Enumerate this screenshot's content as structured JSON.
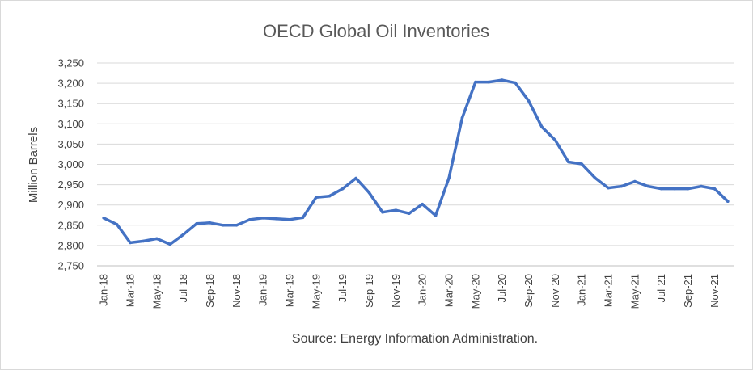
{
  "chart_data": {
    "type": "line",
    "title": "OECD Global Oil Inventories",
    "ylabel": "Million Barrels",
    "xlabel": "",
    "source": "Source: Energy Information Administration.",
    "ylim": [
      2750,
      3250
    ],
    "y_ticks": [
      2750,
      2800,
      2850,
      2900,
      2950,
      3000,
      3050,
      3100,
      3150,
      3200,
      3250
    ],
    "y_tick_labels": [
      "2,750",
      "2,800",
      "2,850",
      "2,900",
      "2,950",
      "3,000",
      "3,050",
      "3,100",
      "3,150",
      "3,200",
      "3,250"
    ],
    "x": [
      "Jan-18",
      "Feb-18",
      "Mar-18",
      "Apr-18",
      "May-18",
      "Jun-18",
      "Jul-18",
      "Aug-18",
      "Sep-18",
      "Oct-18",
      "Nov-18",
      "Dec-18",
      "Jan-19",
      "Feb-19",
      "Mar-19",
      "Apr-19",
      "May-19",
      "Jun-19",
      "Jul-19",
      "Aug-19",
      "Sep-19",
      "Oct-19",
      "Nov-19",
      "Dec-19",
      "Jan-20",
      "Feb-20",
      "Mar-20",
      "Apr-20",
      "May-20",
      "Jun-20",
      "Jul-20",
      "Aug-20",
      "Sep-20",
      "Oct-20",
      "Nov-20",
      "Dec-20",
      "Jan-21",
      "Feb-21",
      "Mar-21",
      "Apr-21",
      "May-21",
      "Jun-21",
      "Jul-21",
      "Aug-21",
      "Sep-21",
      "Oct-21",
      "Nov-21",
      "Dec-21"
    ],
    "x_tick_labels": [
      "Jan-18",
      "Mar-18",
      "May-18",
      "Jul-18",
      "Sep-18",
      "Nov-18",
      "Jan-19",
      "Mar-19",
      "May-19",
      "Jul-19",
      "Sep-19",
      "Nov-19",
      "Jan-20",
      "Mar-20",
      "May-20",
      "Jul-20",
      "Sep-20",
      "Nov-20",
      "Jan-21",
      "Mar-21",
      "May-21",
      "Jul-21",
      "Sep-21",
      "Nov-21"
    ],
    "series": [
      {
        "color": "#4472c4",
        "values": [
          2868,
          2852,
          2807,
          2811,
          2817,
          2803,
          2827,
          2854,
          2856,
          2850,
          2850,
          2864,
          2868,
          2866,
          2864,
          2869,
          2919,
          2922,
          2940,
          2966,
          2930,
          2882,
          2887,
          2879,
          2902,
          2874,
          2966,
          3115,
          3203,
          3203,
          3208,
          3201,
          3157,
          3092,
          3060,
          3006,
          3001,
          2967,
          2942,
          2946,
          2958,
          2946,
          2940,
          2940,
          2940,
          2946,
          2940,
          2909
        ]
      }
    ],
    "grid": true,
    "legend": "none"
  }
}
